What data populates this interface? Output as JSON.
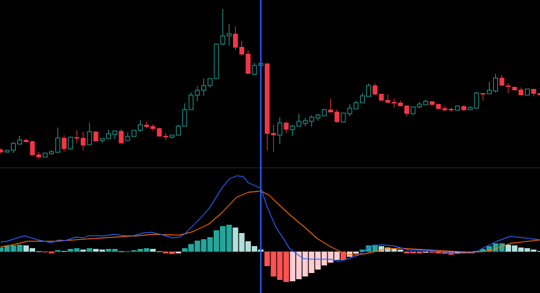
{
  "chart_data": [
    {
      "type": "candlestick",
      "title": "",
      "ohlc_columns": [
        "open",
        "high",
        "low",
        "close"
      ],
      "ohlc": [
        [
          33,
          35,
          28,
          29
        ],
        [
          29.5,
          32,
          29.5,
          32
        ],
        [
          32,
          44,
          28,
          42
        ],
        [
          41,
          53,
          41,
          47
        ],
        [
          47,
          49,
          43,
          44
        ],
        [
          45,
          46,
          24,
          25
        ],
        [
          26,
          30,
          19,
          22
        ],
        [
          22,
          28,
          22,
          28
        ],
        [
          27,
          32,
          26,
          30
        ],
        [
          29,
          65,
          29,
          50
        ],
        [
          50,
          54,
          30,
          34
        ],
        [
          34,
          51,
          33,
          51
        ],
        [
          51,
          61,
          43,
          49
        ],
        [
          50,
          59,
          32,
          39
        ],
        [
          40,
          72,
          40,
          59
        ],
        [
          59,
          60,
          45,
          45
        ],
        [
          46,
          49,
          43,
          49
        ],
        [
          49,
          62,
          49,
          56
        ],
        [
          55,
          60,
          48,
          60
        ],
        [
          60,
          63,
          42,
          42
        ],
        [
          46,
          58,
          46,
          52
        ],
        [
          52,
          61,
          52,
          61
        ],
        [
          61,
          76,
          59,
          69
        ],
        [
          69,
          73,
          64,
          66
        ],
        [
          67,
          70,
          60,
          63
        ],
        [
          64,
          65,
          52,
          52
        ],
        [
          53,
          57,
          47,
          51
        ],
        [
          51,
          54,
          49,
          54
        ],
        [
          54,
          69,
          54,
          67
        ],
        [
          67,
          100,
          67,
          91
        ],
        [
          91,
          116,
          91,
          112
        ],
        [
          112,
          125,
          103,
          119
        ],
        [
          119,
          136,
          111,
          126
        ],
        [
          126,
          136,
          123,
          136
        ],
        [
          136,
          187,
          136,
          186
        ],
        [
          186,
          237,
          184,
          198
        ],
        [
          198,
          215,
          184,
          201
        ],
        [
          201,
          212,
          178,
          181
        ],
        [
          182,
          191,
          169,
          171
        ],
        [
          172,
          177,
          143,
          143
        ],
        [
          142,
          159,
          141,
          155
        ],
        [
          155,
          159,
          145,
          158
        ],
        [
          158,
          158,
          32,
          56
        ],
        [
          57,
          69,
          30,
          54
        ],
        [
          54,
          80,
          41,
          72
        ],
        [
          72,
          74,
          57,
          62
        ],
        [
          62,
          69,
          53,
          67
        ],
        [
          67,
          85,
          67,
          74
        ],
        [
          71,
          79,
          67,
          75
        ],
        [
          74,
          83,
          66,
          80
        ],
        [
          79,
          85,
          75,
          83
        ],
        [
          82,
          92,
          82,
          91
        ],
        [
          91,
          107,
          87,
          87
        ],
        [
          88,
          91,
          72,
          73
        ],
        [
          73,
          86,
          73,
          86
        ],
        [
          85,
          99,
          81,
          93
        ],
        [
          92,
          104,
          92,
          101
        ],
        [
          101,
          115,
          101,
          111
        ],
        [
          110,
          129,
          110,
          126
        ],
        [
          126,
          129,
          112,
          113
        ],
        [
          114,
          114,
          104,
          104
        ],
        [
          105,
          113,
          101,
          101
        ],
        [
          102,
          107,
          94,
          100
        ],
        [
          101,
          104,
          96,
          96
        ],
        [
          97,
          97,
          81,
          85
        ],
        [
          85,
          95,
          84,
          95
        ],
        [
          95,
          102,
          93,
          99
        ],
        [
          98,
          105,
          98,
          103
        ],
        [
          103,
          103,
          98,
          98
        ],
        [
          99,
          100,
          92,
          92
        ],
        [
          93,
          97,
          89,
          90
        ],
        [
          92,
          94,
          88,
          90
        ],
        [
          90,
          97,
          90,
          96
        ],
        [
          96,
          97,
          90,
          90
        ],
        [
          91,
          96,
          91,
          94
        ],
        [
          93,
          117,
          93,
          115
        ],
        [
          115,
          115,
          104,
          113
        ],
        [
          114,
          131,
          114,
          119
        ],
        [
          118,
          143,
          116,
          137
        ],
        [
          137,
          141,
          125,
          126
        ],
        [
          126,
          129,
          115,
          124
        ],
        [
          124,
          124,
          119,
          119
        ],
        [
          120,
          123,
          112,
          112
        ],
        [
          112,
          121,
          112,
          121
        ],
        [
          121,
          121,
          110,
          114
        ],
        [
          115,
          115,
          112,
          112
        ]
      ],
      "colors": {
        "up": "#26a69a",
        "down": "#f23645",
        "background": "#000000"
      },
      "up_candle_style": "hollow",
      "crosshair_bar_index": 42,
      "crosshair_color": "#2962ff",
      "grid": false
    },
    {
      "type": "macd",
      "histogram": [
        6,
        8,
        9,
        10,
        9,
        5,
        0.5,
        -1,
        -2.5,
        2,
        1,
        4,
        5,
        3,
        5,
        4,
        3,
        4,
        4,
        0.5,
        0.5,
        2,
        4,
        5,
        4,
        0.5,
        -2.5,
        -3.5,
        -2.5,
        5,
        11,
        16,
        18,
        21,
        31,
        37,
        39,
        35,
        27,
        15,
        8,
        3,
        -21,
        -36,
        -41,
        -44,
        -43,
        -40,
        -36,
        -31,
        -26,
        -20,
        -16,
        -12,
        -12,
        -7.5,
        -3,
        3,
        9,
        10,
        8,
        6,
        4,
        3,
        -2.5,
        -2.5,
        -2.5,
        -1.5,
        -1.5,
        -2.5,
        -3,
        -4.5,
        -3,
        -2,
        -2,
        1,
        4,
        8,
        12,
        12,
        10,
        9,
        6,
        5,
        3,
        1
      ],
      "macd_line": [
        [
          1,
          14
        ],
        [
          2,
          15
        ],
        [
          3,
          18
        ],
        [
          4.7,
          23
        ],
        [
          6.9,
          17
        ],
        [
          9,
          13
        ],
        [
          10.1,
          17
        ],
        [
          11.2,
          16
        ],
        [
          12.8,
          21
        ],
        [
          14.2,
          20
        ],
        [
          14.8,
          23
        ],
        [
          17.2,
          23
        ],
        [
          19,
          25
        ],
        [
          20.5,
          23
        ],
        [
          21.9,
          23
        ],
        [
          23.4,
          27
        ],
        [
          24.8,
          28
        ],
        [
          26.2,
          25
        ],
        [
          28.1,
          20
        ],
        [
          29.2,
          21
        ],
        [
          29.9,
          25
        ],
        [
          32.1,
          45
        ],
        [
          33.8,
          62
        ],
        [
          36,
          94
        ],
        [
          37.1,
          106
        ],
        [
          38.2,
          110
        ],
        [
          39.2,
          109
        ],
        [
          40,
          100
        ],
        [
          42,
          92
        ],
        [
          43,
          65
        ],
        [
          44.4,
          35
        ],
        [
          45.5,
          20
        ],
        [
          46.5,
          5
        ],
        [
          47.6,
          -3
        ],
        [
          48.7,
          -10
        ],
        [
          49.8,
          -11
        ],
        [
          52,
          -11
        ],
        [
          53,
          -11
        ],
        [
          54.2,
          -14
        ],
        [
          55.6,
          -11
        ],
        [
          57.4,
          -5
        ],
        [
          59.3,
          8
        ],
        [
          61,
          10
        ],
        [
          63.2,
          8
        ],
        [
          65.3,
          2
        ],
        [
          67.5,
          2
        ],
        [
          69.7,
          1
        ],
        [
          71.9,
          -2
        ],
        [
          74,
          -2
        ],
        [
          75.6,
          -2
        ],
        [
          77,
          5
        ],
        [
          79.2,
          15
        ],
        [
          81.3,
          22
        ],
        [
          83.5,
          20
        ],
        [
          86,
          17
        ]
      ],
      "signal_line": [
        [
          1,
          7
        ],
        [
          3,
          10
        ],
        [
          5.2,
          15
        ],
        [
          9.6,
          15
        ],
        [
          17.2,
          20
        ],
        [
          22.6,
          23
        ],
        [
          24.8,
          25
        ],
        [
          29.2,
          24
        ],
        [
          31.3,
          29
        ],
        [
          33.8,
          40
        ],
        [
          35.7,
          55
        ],
        [
          38.2,
          79
        ],
        [
          40,
          86
        ],
        [
          42,
          88
        ],
        [
          43.3,
          82
        ],
        [
          44.4,
          72
        ],
        [
          46.5,
          54
        ],
        [
          48.7,
          37
        ],
        [
          50.9,
          19
        ],
        [
          53,
          7
        ],
        [
          55.2,
          -3
        ],
        [
          56.7,
          -5
        ],
        [
          58.5,
          -3
        ],
        [
          61.8,
          4
        ],
        [
          63.9,
          5
        ],
        [
          67.5,
          3
        ],
        [
          71.2,
          1
        ],
        [
          74.8,
          -1
        ],
        [
          77,
          0
        ],
        [
          78.4,
          2
        ],
        [
          81.3,
          12
        ],
        [
          86,
          17
        ]
      ],
      "colors": {
        "macd_line": "#2962ff",
        "signal_line": "#ff6d00",
        "hist_pos_rising": "#26a69a",
        "hist_pos_falling": "#b2dfdb",
        "hist_neg_falling": "#ff5252",
        "hist_neg_rising": "#ffcdd2"
      },
      "zero_line": true
    }
  ]
}
